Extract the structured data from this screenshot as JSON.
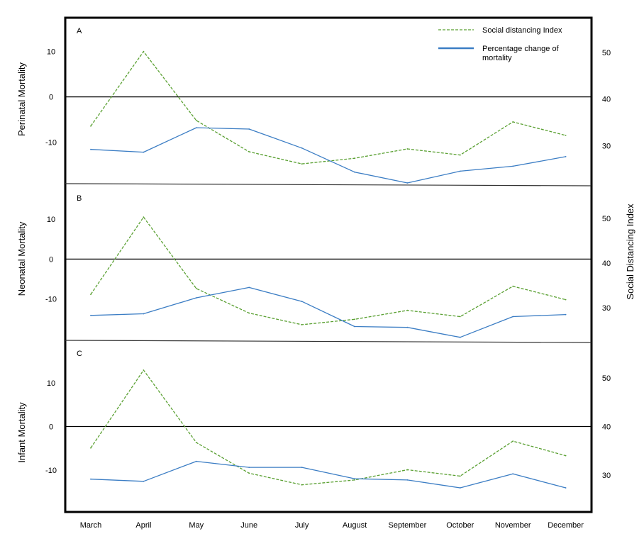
{
  "chart_data": [
    {
      "panel": "A",
      "type": "line",
      "y_left_label": "Perinatal Mortality",
      "y_left_ticks": [
        10,
        0,
        -10
      ],
      "y_left_lim": [
        -19,
        17
      ],
      "y_right_ticks": [
        50,
        40,
        30
      ],
      "y_right_lim": [
        22,
        57
      ],
      "categories": [
        "March",
        "April",
        "May",
        "June",
        "July",
        "August",
        "September",
        "October",
        "November",
        "December"
      ],
      "series": [
        {
          "name": "Social distancing Index",
          "axis": "right",
          "values": [
            34.2,
            50.2,
            35.4,
            28.7,
            26.1,
            27.3,
            29.3,
            28.0,
            35.1,
            32.2
          ]
        },
        {
          "name": "Percentage change of mortality",
          "axis": "left",
          "values": [
            -11.6,
            -12.2,
            -6.8,
            -7.1,
            -11.3,
            -16.6,
            -19.0,
            -16.4,
            -15.3,
            -13.2
          ]
        }
      ]
    },
    {
      "panel": "B",
      "type": "line",
      "y_left_label": "Neonatal Mortality",
      "y_left_ticks": [
        10,
        0,
        -10
      ],
      "y_left_lim": [
        -20,
        18
      ],
      "y_right_ticks": [
        50,
        40,
        30
      ],
      "y_right_lim": [
        23,
        57
      ],
      "categories": [
        "March",
        "April",
        "May",
        "June",
        "July",
        "August",
        "September",
        "October",
        "November",
        "December"
      ],
      "series": [
        {
          "name": "Social distancing Index",
          "axis": "right",
          "values": [
            33.0,
            50.3,
            34.3,
            28.8,
            26.2,
            27.4,
            29.4,
            28.0,
            34.8,
            31.8
          ]
        },
        {
          "name": "Percentage change of mortality",
          "axis": "left",
          "values": [
            -14.1,
            -13.7,
            -9.7,
            -7.1,
            -10.6,
            -16.9,
            -17.1,
            -19.6,
            -14.4,
            -13.9
          ]
        }
      ]
    },
    {
      "panel": "C",
      "type": "line",
      "y_left_label": "Infant Mortality",
      "y_left_ticks": [
        10,
        0,
        -10
      ],
      "y_left_lim": [
        -19,
        19
      ],
      "y_right_ticks": [
        50,
        40,
        30
      ],
      "y_right_lim": [
        23,
        57
      ],
      "categories": [
        "March",
        "April",
        "May",
        "June",
        "July",
        "August",
        "September",
        "October",
        "November",
        "December"
      ],
      "series": [
        {
          "name": "Social distancing Index",
          "axis": "right",
          "values": [
            35.6,
            51.6,
            36.7,
            30.4,
            28.0,
            29.0,
            31.1,
            29.8,
            37.0,
            34.0
          ]
        },
        {
          "name": "Percentage change of mortality",
          "axis": "left",
          "values": [
            -12.1,
            -12.6,
            -8.0,
            -9.4,
            -9.4,
            -12.0,
            -12.3,
            -14.1,
            -10.9,
            -14.1
          ]
        }
      ]
    }
  ],
  "legend": {
    "sdi_label": "Social distancing Index",
    "mortality_label": "Percentage change of mortality",
    "sdi_color": "#5aa032",
    "mortality_color": "#3b7dc4"
  },
  "right_axis_label": "Social Distancing Index",
  "zero_line": true
}
